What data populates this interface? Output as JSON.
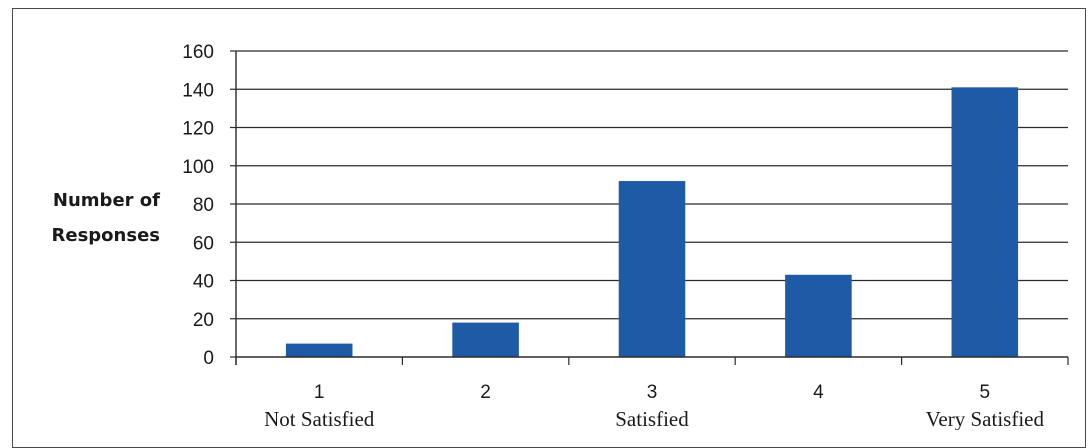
{
  "chart_data": {
    "type": "bar",
    "categories": [
      "1",
      "2",
      "3",
      "4",
      "5"
    ],
    "category_sublabels": [
      "Not Satisfied",
      "",
      "Satisfied",
      "",
      "Very Satisfied"
    ],
    "values": [
      7,
      18,
      92,
      43,
      141
    ],
    "ylabel_lines": [
      "Number of",
      "Responses"
    ],
    "ylim": [
      0,
      160
    ],
    "yticks": [
      0,
      20,
      40,
      60,
      80,
      100,
      120,
      140,
      160
    ],
    "grid": true,
    "bar_color": "#1f5aa6",
    "legend": "none"
  }
}
